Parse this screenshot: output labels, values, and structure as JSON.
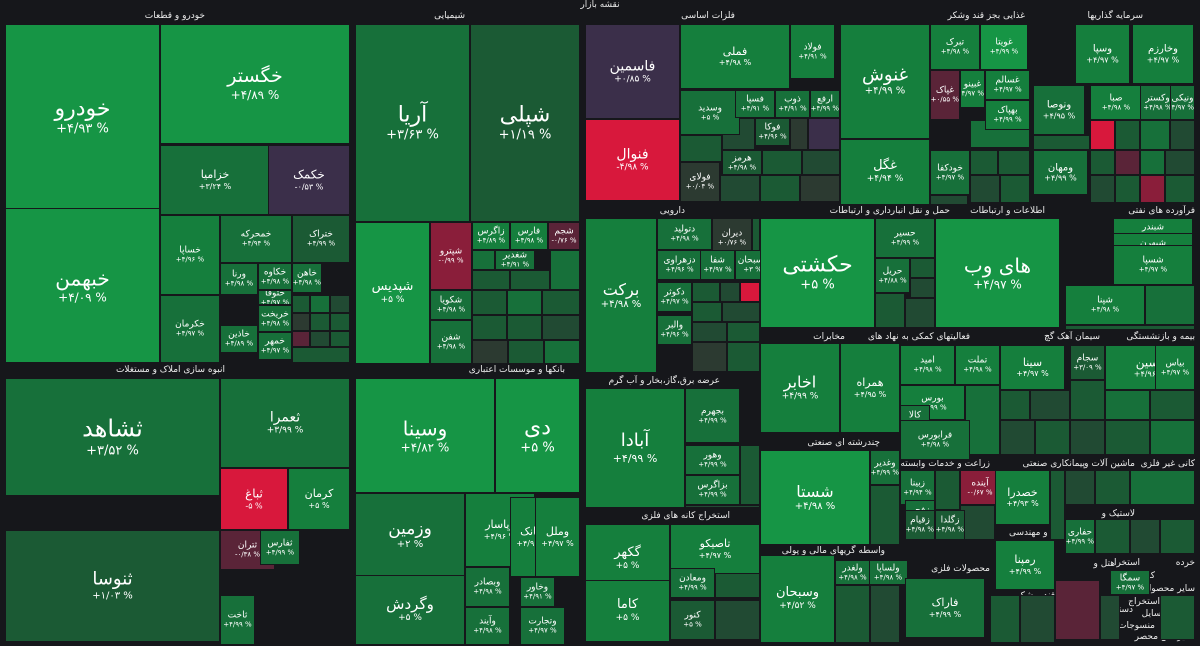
{
  "title": "نقشه بازار",
  "colors": {
    "g5": "#1aa64f",
    "g4": "#169545",
    "g3": "#157f3d",
    "g2": "#17703a",
    "g1": "#1b5a34",
    "g0": "#214a33",
    "n": "#2c3a31",
    "r1": "#5a2438",
    "r2": "#8a1e3a",
    "r3": "#d8183c",
    "purple": "#3b2f4a"
  },
  "sections": [
    {
      "name": "خودرو و قطعات"
    },
    {
      "name": "شیمیایی"
    },
    {
      "name": "فلزات اساسی"
    },
    {
      "name": "غذایی بجز قند وشکر"
    },
    {
      "name": "سرمایه گذاریها"
    },
    {
      "name": "انبوه سازی املاک و مستغلات"
    },
    {
      "name": "بانکها و موسسات اعتباری"
    },
    {
      "name": "دارویی"
    },
    {
      "name": "حمل و نقل انبارداری و ارتباطات"
    },
    {
      "name": "اطلاعات و ارتباطات"
    },
    {
      "name": "فرآورده های نفتی"
    },
    {
      "name": "فعالیتهای کمکی به نهاد های"
    },
    {
      "name": "سیمان آهک گچ"
    },
    {
      "name": "بیمه و بازنشستگی"
    },
    {
      "name": "مخابرات"
    },
    {
      "name": "عرضه برق،گاز،بخار و آب گرم"
    },
    {
      "name": "چندرشته ای صنعتی"
    },
    {
      "name": "زراعت و خدمات وابسته"
    },
    {
      "name": "پیمانکاری صنعتی"
    },
    {
      "name": "ماشین آلات و"
    },
    {
      "name": "کانی غیر فلزی"
    },
    {
      "name": "استخراج کانه های فلزی"
    },
    {
      "name": "واسطه گریهای مالی و پولی"
    },
    {
      "name": "فنی و مهندسی"
    },
    {
      "name": "محصولات فلزی"
    },
    {
      "name": "لاستیک و"
    },
    {
      "name": "قند و شکر"
    },
    {
      "name": "هتل و"
    },
    {
      "name": "خرده"
    },
    {
      "name": "استخرا"
    },
    {
      "name": "کاشی و"
    },
    {
      "name": "سایر محصول"
    },
    {
      "name": "دستگاههای"
    },
    {
      "name": "استخراج"
    },
    {
      "name": "منسوجات"
    },
    {
      "name": "جاه مح وسایل"
    },
    {
      "name": "سایر اش محصر"
    }
  ],
  "cells": [
    {
      "s": "خودرو",
      "p": "% ۴/۹۳+",
      "c": "g4"
    },
    {
      "s": "خگستر",
      "p": "% ۴/۸۹+",
      "c": "g4"
    },
    {
      "s": "خزامیا",
      "p": "% ۳/۲۴+",
      "c": "g2"
    },
    {
      "s": "خکمک",
      "p": "% ۰/۵۳-",
      "c": "purple"
    },
    {
      "s": "خبهمن",
      "p": "% ۴/۰۹+",
      "c": "g4"
    },
    {
      "s": "خساپا",
      "p": "% ۴/۹۶+",
      "c": "g3"
    },
    {
      "s": "خمحرکه",
      "p": "% ۴/۹۴+",
      "c": "g2"
    },
    {
      "s": "ختراک",
      "p": "% ۴/۹۹+",
      "c": "g1"
    },
    {
      "s": "خکرمان",
      "p": "% ۴/۹۷+",
      "c": "g2"
    },
    {
      "s": "ورنا",
      "p": "% ۴/۹۸+",
      "c": "g2"
    },
    {
      "s": "خکاوه",
      "p": "% ۴/۹۸+",
      "c": "g2"
    },
    {
      "s": "ختوقا",
      "p": "% ۴/۹۷+",
      "c": "g2"
    },
    {
      "s": "خاهن",
      "p": "% ۴/۹۸+",
      "c": "g2"
    },
    {
      "s": "خریخت",
      "p": "% ۴/۹۸+",
      "c": "g2"
    },
    {
      "s": "خاذین",
      "p": "% ۴/۸۹+",
      "c": "g2"
    },
    {
      "s": "خمهر",
      "p": "% ۴/۹۷+",
      "c": "g2"
    },
    {
      "s": "آریا",
      "p": "% ۳/۶۳+",
      "c": "g2"
    },
    {
      "s": "شپلی",
      "p": "% ۱/۱۹+",
      "c": "g1"
    },
    {
      "s": "شپدیس",
      "p": "% ۵+",
      "c": "g4"
    },
    {
      "s": "شپترو",
      "p": "% ۰/۹۹-",
      "c": "r2"
    },
    {
      "s": "زاگرس",
      "p": "% ۴/۸۹+",
      "c": "g3"
    },
    {
      "s": "فارس",
      "p": "% ۴/۹۸+",
      "c": "g3"
    },
    {
      "s": "شجم",
      "p": "% ۰/۷۶-",
      "c": "r1"
    },
    {
      "s": "شغدیر",
      "p": "% ۴/۹۱+",
      "c": "g2"
    },
    {
      "s": "شکویا",
      "p": "% ۴/۹۸+",
      "c": "g2"
    },
    {
      "s": "شفن",
      "p": "% ۴/۹۸+",
      "c": "g2"
    },
    {
      "s": "فاسمین",
      "p": "% ۰/۸۵+",
      "c": "purple"
    },
    {
      "s": "فولاد",
      "p": "% ۴/۹۸+",
      "c": "g3"
    },
    {
      "s": "فملی",
      "p": "% ۴/۹۸+",
      "c": "g3"
    },
    {
      "s": "فولاد",
      "p": "% ۴/۹۱+",
      "c": "g3"
    },
    {
      "s": "فنوال",
      "p": "% ۴/۹۸-",
      "c": "r3"
    },
    {
      "s": "وسدید",
      "p": "% ۵+",
      "c": "g2"
    },
    {
      "s": "فسپا",
      "p": "% ۴/۹۱+",
      "c": "g2"
    },
    {
      "s": "ذوب",
      "p": "% ۴/۹۱+",
      "c": "g2"
    },
    {
      "s": "ارفع",
      "p": "% ۴/۹۹+",
      "c": "g2"
    },
    {
      "s": "فوکا",
      "p": "% ۴/۹۶+",
      "c": "g1"
    },
    {
      "s": "هرمز",
      "p": "% ۴/۹۸+",
      "c": "g1"
    },
    {
      "s": "فولای",
      "p": "% ۰/۰۴+",
      "c": "n"
    },
    {
      "s": "غنوش",
      "p": "% ۴/۹۹+",
      "c": "g3"
    },
    {
      "s": "غگل",
      "p": "% ۴/۹۴+",
      "c": "g3"
    },
    {
      "s": "تبرک",
      "p": "% ۴/۹۸+",
      "c": "g3"
    },
    {
      "s": "غویتا",
      "p": "% ۴/۹۹+",
      "c": "g4"
    },
    {
      "s": "غپاک",
      "p": "% ۰/۵۵+",
      "c": "r1"
    },
    {
      "s": "غبینو",
      "p": "% ۴/۹۷+",
      "c": "g3"
    },
    {
      "s": "غسالم",
      "p": "% ۴/۹۷+",
      "c": "g3"
    },
    {
      "s": "بهپاک",
      "p": "% ۴/۹۹+",
      "c": "g3"
    },
    {
      "s": "خودکفا",
      "p": "% ۴/۹۷+",
      "c": "g2"
    },
    {
      "s": "وسپا",
      "p": "% ۴/۹۷+",
      "c": "g3"
    },
    {
      "s": "وخارزم",
      "p": "% ۴/۹۷+",
      "c": "g3"
    },
    {
      "s": "صبا",
      "p": "% ۴/۹۸+",
      "c": "g3"
    },
    {
      "s": "وکستر",
      "p": "% ۴/۹۸+",
      "c": "g2"
    },
    {
      "s": "ونیکی",
      "p": "% ۴/۹۷+",
      "c": "g2"
    },
    {
      "s": "ونوصا",
      "p": "% ۴/۹۵+",
      "c": "g2"
    },
    {
      "s": "ومهان",
      "p": "% ۴/۹۹+",
      "c": "g2"
    },
    {
      "s": "ثشاهد",
      "p": "% ۳/۵۲+",
      "c": "g2"
    },
    {
      "s": "ثعمرا",
      "p": "% ۳/۹۹+",
      "c": "g2"
    },
    {
      "s": "ثباغ",
      "p": "% ۵-",
      "c": "r3"
    },
    {
      "s": "کرمان",
      "p": "% ۵+",
      "c": "g3"
    },
    {
      "s": "ثتران",
      "p": "% ۰/۳۸-",
      "c": "r1"
    },
    {
      "s": "ثنوسا",
      "p": "% ۱/۰۳+",
      "c": "g1"
    },
    {
      "s": "ثفارس",
      "p": "% ۴/۹۹+",
      "c": "g2"
    },
    {
      "s": "ثاخت",
      "p": "% ۴/۹۹+",
      "c": "g2"
    },
    {
      "s": "وسینا",
      "p": "% ۴/۸۲+",
      "c": "g4"
    },
    {
      "s": "دی",
      "p": "% ۵+",
      "c": "g4"
    },
    {
      "s": "وزمین",
      "p": "% ۲+",
      "c": "g2"
    },
    {
      "s": "وپاسار",
      "p": "% ۴/۹۶+",
      "c": "g3"
    },
    {
      "s": "ویانک",
      "p": "% ۴/۹۶+",
      "c": "g3"
    },
    {
      "s": "وملل",
      "p": "% ۴/۹۷+",
      "c": "g3"
    },
    {
      "s": "وگردش",
      "p": "% ۵+",
      "c": "g2"
    },
    {
      "s": "وبصادر",
      "p": "% ۴/۹۸+",
      "c": "g2"
    },
    {
      "s": "وخاور",
      "p": "% ۴/۹۱+",
      "c": "g2"
    },
    {
      "s": "وآیند",
      "p": "% ۴/۹۸+",
      "c": "g2"
    },
    {
      "s": "وتجارت",
      "p": "% ۴/۹۷+",
      "c": "g2"
    },
    {
      "s": "برکت",
      "p": "% ۴/۹۸+",
      "c": "g3"
    },
    {
      "s": "دتولید",
      "p": "% ۴/۹۸+",
      "c": "g2"
    },
    {
      "s": "دیران",
      "p": "% ۰/۷۶+",
      "c": "n"
    },
    {
      "s": "دزهراوی",
      "p": "% ۴/۹۶+",
      "c": "g2"
    },
    {
      "s": "شفا",
      "p": "% ۴/۹۷+",
      "c": "g2"
    },
    {
      "s": "دسبحان",
      "p": "% ۳+",
      "c": "g2"
    },
    {
      "s": "دکوثر",
      "p": "% ۴/۹۷+",
      "c": "g2"
    },
    {
      "s": "والبر",
      "p": "% ۴/۹۶+",
      "c": "g2"
    },
    {
      "s": "حکشتی",
      "p": "% ۵+",
      "c": "g4"
    },
    {
      "s": "حسیر",
      "p": "% ۴/۹۹+",
      "c": "g2"
    },
    {
      "s": "حریل",
      "p": "% ۴/۸۸+",
      "c": "g2"
    },
    {
      "s": "های وب",
      "p": "% ۴/۹۷+",
      "c": "g4"
    },
    {
      "s": "شبندر",
      "p": "% ۴/۹۷+",
      "c": "g3"
    },
    {
      "s": "شبهرن",
      "p": "% ۴/۹۷+",
      "c": "g3"
    },
    {
      "s": "شسپا",
      "p": "% ۴/۹۷+",
      "c": "g3"
    },
    {
      "s": "شپنا",
      "p": "% ۴/۹۸+",
      "c": "g3"
    },
    {
      "s": "اخابر",
      "p": "% ۴/۹۹+",
      "c": "g3"
    },
    {
      "s": "همراه",
      "p": "% ۴/۹۵+",
      "c": "g3"
    },
    {
      "s": "آبادا",
      "p": "% ۴/۹۹+",
      "c": "g3"
    },
    {
      "s": "بجهرم",
      "p": "% ۴/۹۹+",
      "c": "g2"
    },
    {
      "s": "وهور",
      "p": "% ۴/۹۹+",
      "c": "g2"
    },
    {
      "s": "بزاگرس",
      "p": "% ۴/۹۹+",
      "c": "g2"
    },
    {
      "s": "امید",
      "p": "% ۴/۹۸+",
      "c": "g3"
    },
    {
      "s": "تملت",
      "p": "% ۴/۹۸+",
      "c": "g3"
    },
    {
      "s": "بورس",
      "p": "% ۴/۹۹+",
      "c": "g3"
    },
    {
      "s": "کالا",
      "p": "% ۴/۹۹+",
      "c": "g2"
    },
    {
      "s": "فرابورس",
      "p": "% ۴/۹۸+",
      "c": "g2"
    },
    {
      "s": "سینا",
      "p": "% ۴/۹۷+",
      "c": "g3"
    },
    {
      "s": "سجام",
      "p": "% ۳/۰۹+",
      "c": "g1"
    },
    {
      "s": "وسین",
      "p": "% ۴/۹۶+",
      "c": "g3"
    },
    {
      "s": "بیاس",
      "p": "% ۴/۹۷+",
      "c": "g3"
    },
    {
      "s": "شستا",
      "p": "% ۴/۹۸+",
      "c": "g4"
    },
    {
      "s": "وغدیر",
      "p": "% ۴/۹۹+",
      "c": "g2"
    },
    {
      "s": "زبینا",
      "p": "% ۴/۹۴+",
      "c": "g2"
    },
    {
      "s": "آینده",
      "p": "% ۰/۶۷-",
      "c": "r2"
    },
    {
      "s": "خصدرا",
      "p": "% ۴/۹۳+",
      "c": "g3"
    },
    {
      "s": "زفجر",
      "p": "% ۴/۹۹+",
      "c": "g2"
    },
    {
      "s": "زقیام",
      "p": "% ۴/۹۸+",
      "c": "g1"
    },
    {
      "s": "زگلدا",
      "p": "% ۴/۹۸+",
      "c": "g1"
    },
    {
      "s": "گکهر",
      "p": "% ۵+",
      "c": "g3"
    },
    {
      "s": "تاصیکو",
      "p": "% ۴/۹۷+",
      "c": "g3"
    },
    {
      "s": "کاما",
      "p": "% ۵+",
      "c": "g3"
    },
    {
      "s": "ومعادن",
      "p": "% ۴/۹۹+",
      "c": "g2"
    },
    {
      "s": "کنور",
      "p": "% ۵+",
      "c": "g1"
    },
    {
      "s": "وسبحان",
      "p": "% ۴/۵۲+",
      "c": "g3"
    },
    {
      "s": "ولساپا",
      "p": "% ۴/۹۸+",
      "c": "g2"
    },
    {
      "s": "ولغدر",
      "p": "% ۴/۹۸+",
      "c": "g2"
    },
    {
      "s": "رمپنا",
      "p": "% ۴/۹۹+",
      "c": "g3"
    },
    {
      "s": "فاراک",
      "p": "% ۴/۹۹+",
      "c": "g2"
    },
    {
      "s": "حفاری",
      "p": "% ۴/۹۹+",
      "c": "g2"
    },
    {
      "s": "سمگا",
      "p": "% ۴/۹۷+",
      "c": "g2"
    }
  ]
}
